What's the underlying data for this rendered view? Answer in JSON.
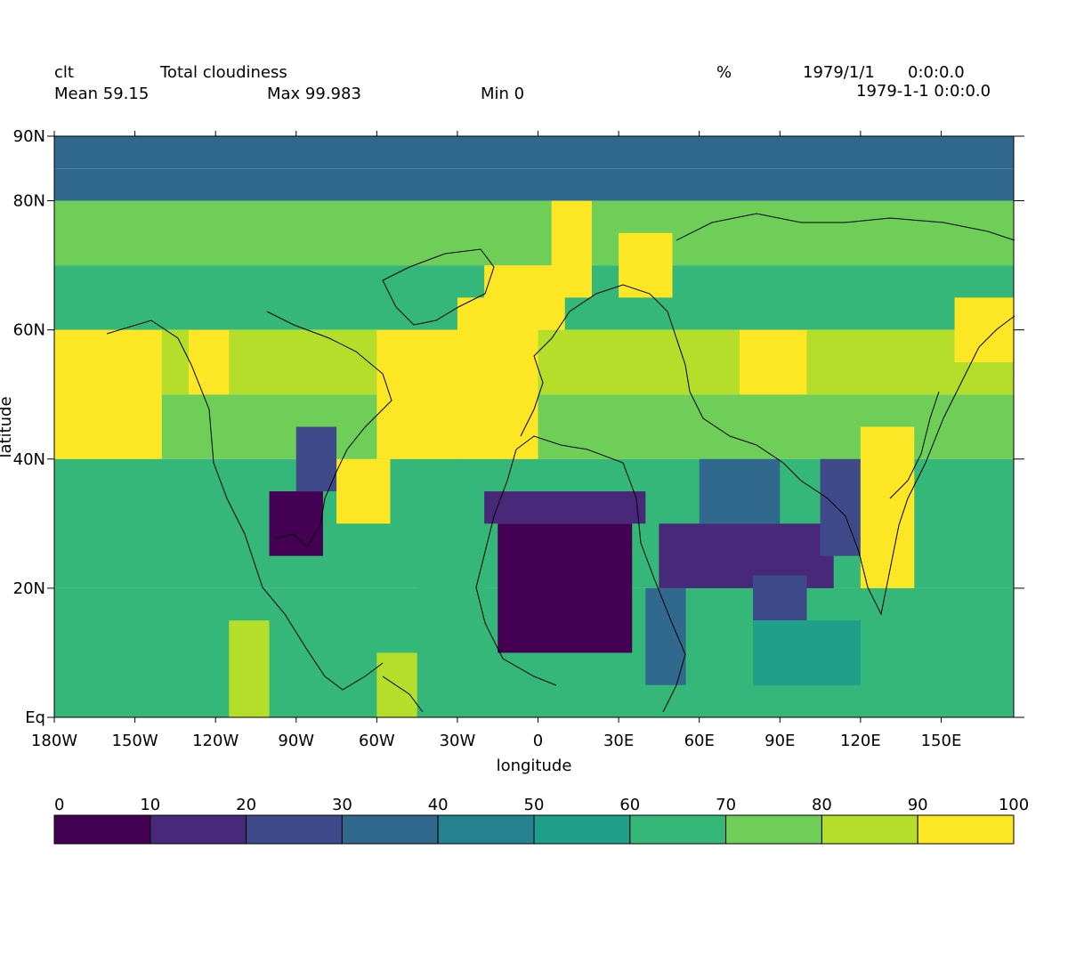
{
  "header": {
    "variable": "clt",
    "long_name": "Total cloudiness",
    "units": "%",
    "date": "1979/1/1",
    "time": "0:0:0.0",
    "mean": "Mean 59.15",
    "max": "Max 99.983",
    "min": "Min 0",
    "datetime": "1979-1-1 0:0:0.0"
  },
  "axes": {
    "xlabel": "longitude",
    "ylabel": "latitude",
    "x_ticks": [
      "180W",
      "150W",
      "120W",
      "90W",
      "60W",
      "30W",
      "0",
      "30E",
      "60E",
      "90E",
      "120E",
      "150E"
    ],
    "y_ticks": [
      "Eq",
      "20N",
      "40N",
      "60N",
      "80N",
      "90N"
    ]
  },
  "colorbar": {
    "ticks": [
      "0",
      "10",
      "20",
      "30",
      "40",
      "50",
      "60",
      "70",
      "80",
      "90",
      "100"
    ],
    "colors": [
      "#440154",
      "#482878",
      "#3e4a89",
      "#31688e",
      "#26828e",
      "#1f9e89",
      "#35b779",
      "#6ece58",
      "#b5de2b",
      "#fde725"
    ]
  },
  "chart_data": {
    "type": "heatmap",
    "title": "Total cloudiness",
    "variable": "clt",
    "units": "%",
    "mean": 59.15,
    "max": 99.983,
    "min": 0,
    "xlim": [
      -180,
      177
    ],
    "ylim": [
      0,
      90
    ],
    "xlabel": "longitude",
    "ylabel": "latitude",
    "colormap": "viridis",
    "color_range": [
      0,
      100
    ],
    "grid_step_deg": 10,
    "cells": [
      {
        "lon": [
          -180,
          180
        ],
        "lat": [
          85,
          90
        ],
        "value": 30
      },
      {
        "lon": [
          -180,
          180
        ],
        "lat": [
          80,
          85
        ],
        "value": 35
      },
      {
        "lon": [
          -180,
          180
        ],
        "lat": [
          70,
          80
        ],
        "value": 70
      },
      {
        "lon": [
          -180,
          180
        ],
        "lat": [
          60,
          70
        ],
        "value": 62
      },
      {
        "lon": [
          -180,
          180
        ],
        "lat": [
          50,
          60
        ],
        "value": 82
      },
      {
        "lon": [
          -180,
          180
        ],
        "lat": [
          40,
          50
        ],
        "value": 75
      },
      {
        "lon": [
          -180,
          180
        ],
        "lat": [
          20,
          40
        ],
        "value": 62
      },
      {
        "lon": [
          -180,
          180
        ],
        "lat": [
          0,
          20
        ],
        "value": 60
      },
      {
        "lon": [
          -180,
          -140
        ],
        "lat": [
          40,
          60
        ],
        "value": 95
      },
      {
        "lon": [
          -130,
          -115
        ],
        "lat": [
          50,
          60
        ],
        "value": 95
      },
      {
        "lon": [
          -60,
          -30
        ],
        "lat": [
          40,
          60
        ],
        "value": 98
      },
      {
        "lon": [
          -30,
          0
        ],
        "lat": [
          40,
          65
        ],
        "value": 95
      },
      {
        "lon": [
          -20,
          10
        ],
        "lat": [
          60,
          70
        ],
        "value": 97
      },
      {
        "lon": [
          5,
          20
        ],
        "lat": [
          65,
          80
        ],
        "value": 99
      },
      {
        "lon": [
          30,
          50
        ],
        "lat": [
          65,
          75
        ],
        "value": 99
      },
      {
        "lon": [
          -75,
          -55
        ],
        "lat": [
          30,
          40
        ],
        "value": 97
      },
      {
        "lon": [
          -100,
          -80
        ],
        "lat": [
          25,
          35
        ],
        "value": 8
      },
      {
        "lon": [
          -90,
          -75
        ],
        "lat": [
          35,
          45
        ],
        "value": 22
      },
      {
        "lon": [
          -15,
          35
        ],
        "lat": [
          10,
          30
        ],
        "value": 1
      },
      {
        "lon": [
          -20,
          40
        ],
        "lat": [
          30,
          35
        ],
        "value": 15
      },
      {
        "lon": [
          45,
          110
        ],
        "lat": [
          20,
          30
        ],
        "value": 10
      },
      {
        "lon": [
          60,
          90
        ],
        "lat": [
          30,
          40
        ],
        "value": 30
      },
      {
        "lon": [
          105,
          120
        ],
        "lat": [
          25,
          40
        ],
        "value": 20
      },
      {
        "lon": [
          80,
          100
        ],
        "lat": [
          15,
          22
        ],
        "value": 25
      },
      {
        "lon": [
          120,
          140
        ],
        "lat": [
          20,
          45
        ],
        "value": 97
      },
      {
        "lon": [
          155,
          180
        ],
        "lat": [
          55,
          65
        ],
        "value": 95
      },
      {
        "lon": [
          75,
          100
        ],
        "lat": [
          50,
          60
        ],
        "value": 90
      },
      {
        "lon": [
          -115,
          -100
        ],
        "lat": [
          0,
          15
        ],
        "value": 80
      },
      {
        "lon": [
          -60,
          -45
        ],
        "lat": [
          0,
          10
        ],
        "value": 85
      },
      {
        "lon": [
          -45,
          -20
        ],
        "lat": [
          10,
          25
        ],
        "value": 65
      },
      {
        "lon": [
          40,
          55
        ],
        "lat": [
          5,
          20
        ],
        "value": 35
      },
      {
        "lon": [
          80,
          120
        ],
        "lat": [
          5,
          15
        ],
        "value": 55
      }
    ]
  }
}
